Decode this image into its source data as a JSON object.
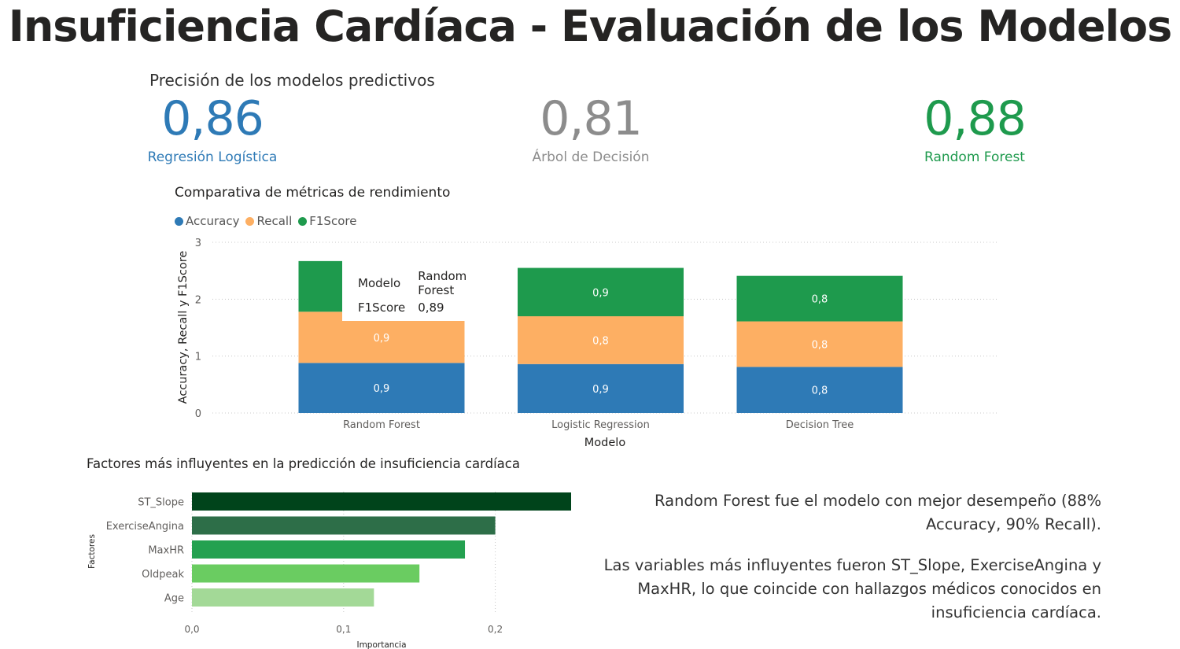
{
  "title": "Insuficiencia Cardíaca - Evaluación de los Modelos",
  "kpis": {
    "header": "Precisión de los modelos predictivos",
    "items": [
      {
        "value": "0,86",
        "label": "Regresión Logística",
        "color": "#2E7AB6"
      },
      {
        "value": "0,81",
        "label": "Árbol de Decisión",
        "color": "#8C8C8C"
      },
      {
        "value": "0,88",
        "label": "Random Forest",
        "color": "#1E9A4D"
      }
    ]
  },
  "chart_data": [
    {
      "type": "bar",
      "stacked": true,
      "title": "Comparativa de métricas de rendimiento",
      "xlabel": "Modelo",
      "ylabel": "Accuracy, Recall y F1Score",
      "categories": [
        "Random Forest",
        "Logistic Regression",
        "Decision Tree"
      ],
      "ylim": [
        0,
        3
      ],
      "yticks": [
        0,
        1,
        2,
        3
      ],
      "grid": true,
      "legend": "top-left",
      "series": [
        {
          "name": "Accuracy",
          "color": "#2E7AB6",
          "values": [
            0.88,
            0.86,
            0.81
          ],
          "labels": [
            "0,9",
            "0,9",
            "0,8"
          ]
        },
        {
          "name": "Recall",
          "color": "#FDAF63",
          "values": [
            0.9,
            0.84,
            0.8
          ],
          "labels": [
            "0,9",
            "0,8",
            "0,8"
          ]
        },
        {
          "name": "F1Score",
          "color": "#1E9A4D",
          "values": [
            0.89,
            0.85,
            0.8
          ],
          "labels": [
            "",
            "0,9",
            "0,8"
          ]
        }
      ],
      "tooltip": {
        "rows": [
          [
            "Modelo",
            "Random Forest"
          ],
          [
            "F1Score",
            "0,89"
          ]
        ]
      }
    },
    {
      "type": "bar",
      "orientation": "horizontal",
      "title": "Factores más influyentes en la predicción de insuficiencia cardíaca",
      "xlabel": "Importancia",
      "ylabel": "Factores",
      "categories": [
        "ST_Slope",
        "ExerciseAngina",
        "MaxHR",
        "Oldpeak",
        "Age"
      ],
      "values": [
        0.25,
        0.2,
        0.18,
        0.15,
        0.12
      ],
      "colors": [
        "#00441B",
        "#2D6E48",
        "#24A150",
        "#6ACC61",
        "#A3D997"
      ],
      "xlim": [
        0,
        0.25
      ],
      "xticks": [
        "0,0",
        "0,1",
        "0,2"
      ],
      "grid": true
    }
  ],
  "summary": {
    "p1": "Random Forest fue el modelo con mejor desempeño (88% Accuracy, 90% Recall).",
    "p2": "Las variables más influyentes fueron ST_Slope, ExerciseAngina y MaxHR, lo que coincide con hallazgos médicos conocidos en insuficiencia cardíaca."
  }
}
